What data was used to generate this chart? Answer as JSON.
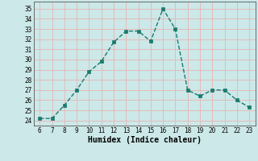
{
  "x": [
    6,
    7,
    8,
    9,
    10,
    11,
    12,
    13,
    14,
    15,
    16,
    17,
    18,
    19,
    20,
    21,
    22,
    23
  ],
  "y": [
    24.2,
    24.2,
    25.5,
    27.0,
    28.8,
    29.8,
    31.7,
    32.8,
    32.8,
    31.8,
    35.0,
    33.0,
    27.0,
    26.4,
    27.0,
    27.0,
    26.0,
    25.3
  ],
  "line_color": "#1a7a6e",
  "marker_color": "#1a7a6e",
  "bg_color": "#cce8e8",
  "grid_color": "#e8b4b4",
  "xlabel": "Humidex (Indice chaleur)",
  "ylim": [
    23.5,
    35.7
  ],
  "xlim": [
    5.5,
    23.5
  ],
  "yticks": [
    24,
    25,
    26,
    27,
    28,
    29,
    30,
    31,
    32,
    33,
    34,
    35
  ],
  "xticks": [
    6,
    7,
    8,
    9,
    10,
    11,
    12,
    13,
    14,
    15,
    16,
    17,
    18,
    19,
    20,
    21,
    22,
    23
  ]
}
